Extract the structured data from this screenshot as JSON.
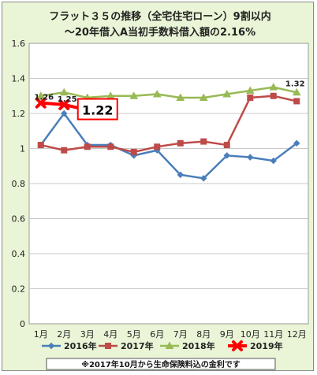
{
  "chart_data": {
    "type": "line",
    "title": "フラット３５の推移（全宅住宅ローン）9割以内",
    "subtitle": "～20年借入A当初手数料借入額の2.16%",
    "categories": [
      "1月",
      "2月",
      "3月",
      "4月",
      "5月",
      "6月",
      "7月",
      "8月",
      "9月",
      "10月",
      "11月",
      "12月"
    ],
    "ylim": [
      0,
      1.6
    ],
    "yticks": [
      "0",
      "0.2",
      "0.4",
      "0.6",
      "0.8",
      "1",
      "1.2",
      "1.4",
      "1.6"
    ],
    "grid": true,
    "legend_position": "bottom",
    "series": [
      {
        "name": "2016年",
        "color": "#4a7ebb",
        "marker": "diamond",
        "values": [
          1.02,
          1.2,
          1.02,
          1.02,
          0.96,
          0.99,
          0.85,
          0.83,
          0.96,
          0.95,
          0.93,
          1.03
        ]
      },
      {
        "name": "2017年",
        "color": "#be4b48",
        "marker": "square",
        "values": [
          1.02,
          0.99,
          1.01,
          1.01,
          0.98,
          1.01,
          1.03,
          1.04,
          1.02,
          1.29,
          1.3,
          1.27
        ]
      },
      {
        "name": "2018年",
        "color": "#98b954",
        "marker": "triangle",
        "values": [
          1.3,
          1.32,
          1.29,
          1.3,
          1.3,
          1.31,
          1.29,
          1.29,
          1.31,
          1.33,
          1.35,
          1.32
        ]
      },
      {
        "name": "2019年",
        "color": "#ff0000",
        "marker": "x",
        "values": [
          1.26,
          1.25,
          1.22,
          null,
          null,
          null,
          null,
          null,
          null,
          null,
          null,
          null
        ]
      }
    ],
    "annotations": [
      {
        "text": "1.26",
        "series": 3,
        "index": 0
      },
      {
        "text": "1.25",
        "series": 3,
        "index": 1
      },
      {
        "text": "1.22",
        "series": 3,
        "index": 2,
        "boxed": true
      },
      {
        "text": "1.32",
        "series": 2,
        "index": 11
      }
    ],
    "footnote": "※2017年10月から生命保険料込の金利です"
  }
}
